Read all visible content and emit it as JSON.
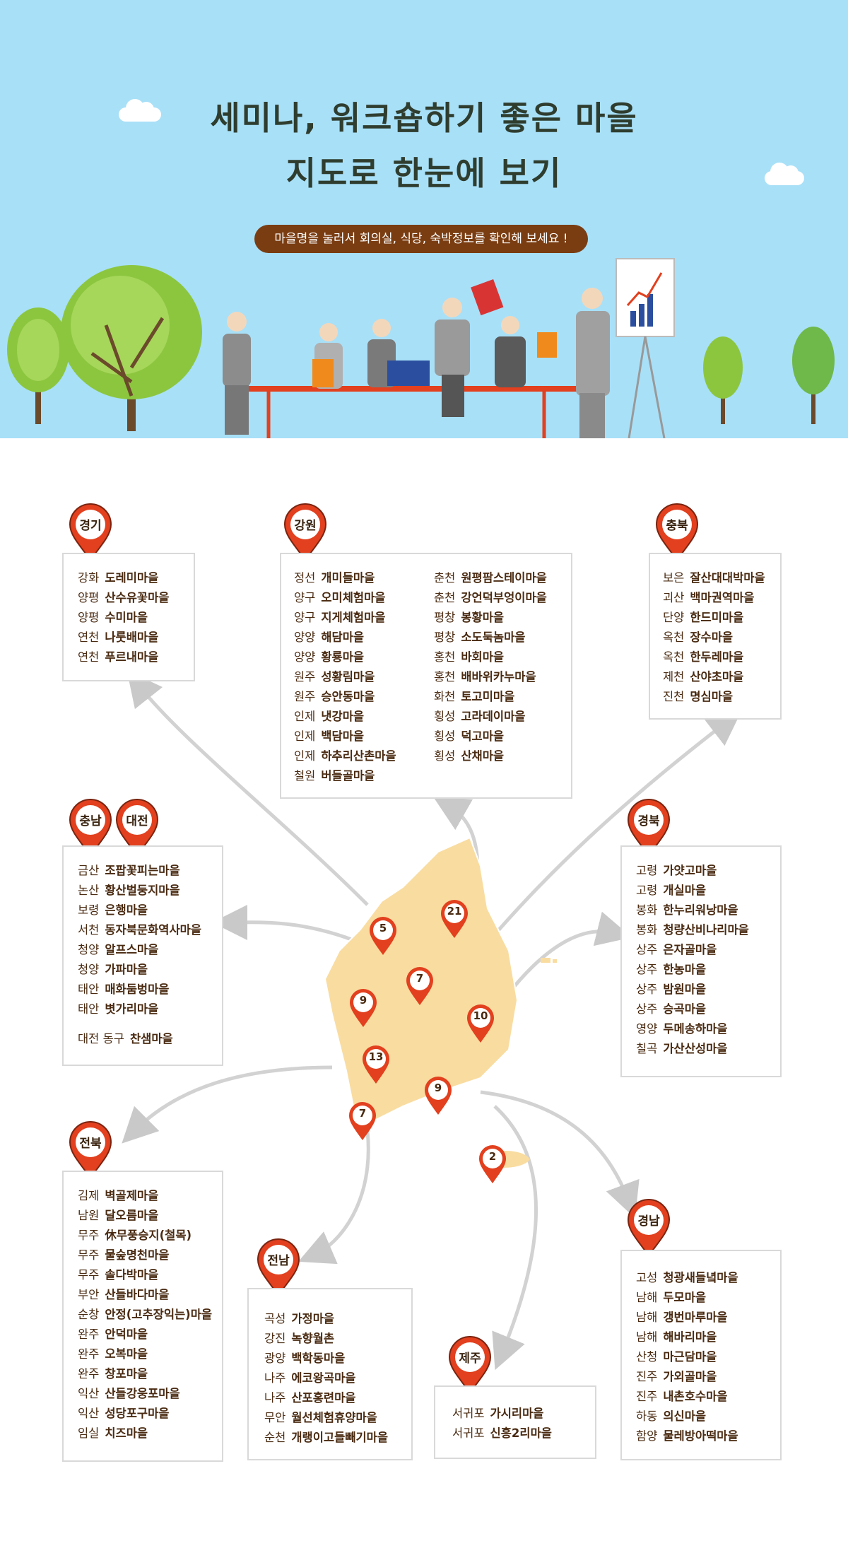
{
  "hero": {
    "title_line1": "세미나, 워크숍하기 좋은 마을",
    "title_line2": "지도로 한눈에 보기",
    "notice": "마을명을 눌러서 회의실, 식당, 숙박정보를 확인해 보세요 !"
  },
  "colors": {
    "sky": "#a8e0f8",
    "pin": "#e2401e",
    "notice_bg": "#7a3d12",
    "map_land": "#f9dca0",
    "box_border": "#d9d9d9",
    "text": "#4a2b12"
  },
  "map_pins": [
    {
      "num": "5"
    },
    {
      "num": "21"
    },
    {
      "num": "7"
    },
    {
      "num": "9"
    },
    {
      "num": "10"
    },
    {
      "num": "13"
    },
    {
      "num": "9"
    },
    {
      "num": "7"
    },
    {
      "num": "2"
    }
  ],
  "regions": {
    "gyeonggi": {
      "label": "경기",
      "items": [
        {
          "district": "강화",
          "village": "도레미마을"
        },
        {
          "district": "양평",
          "village": "산수유꽃마을"
        },
        {
          "district": "양평",
          "village": "수미마을"
        },
        {
          "district": "연천",
          "village": "나룻배마을"
        },
        {
          "district": "연천",
          "village": "푸르내마을"
        }
      ]
    },
    "gangwon": {
      "label": "강원",
      "col1": [
        {
          "district": "정선",
          "village": "개미들마을"
        },
        {
          "district": "양구",
          "village": "오미체험마을"
        },
        {
          "district": "양구",
          "village": "지게체험마을"
        },
        {
          "district": "양양",
          "village": "해담마을"
        },
        {
          "district": "양양",
          "village": "황룡마을"
        },
        {
          "district": "원주",
          "village": "성황림마을"
        },
        {
          "district": "원주",
          "village": "승안동마을"
        },
        {
          "district": "인제",
          "village": "냇강마을"
        },
        {
          "district": "인제",
          "village": "백담마을"
        },
        {
          "district": "인제",
          "village": "하추리산촌마을"
        },
        {
          "district": "철원",
          "village": "버들골마을"
        }
      ],
      "col2": [
        {
          "district": "춘천",
          "village": "원평팜스테이마을"
        },
        {
          "district": "춘천",
          "village": "강언덕부엉이마을"
        },
        {
          "district": "평창",
          "village": "봉황마을"
        },
        {
          "district": "평창",
          "village": "소도둑놈마을"
        },
        {
          "district": "홍천",
          "village": "바회마을"
        },
        {
          "district": "홍천",
          "village": "배바위카누마을"
        },
        {
          "district": "화천",
          "village": "토고미마을"
        },
        {
          "district": "횡성",
          "village": "고라데이마을"
        },
        {
          "district": "횡성",
          "village": "덕고마을"
        },
        {
          "district": "횡성",
          "village": "산채마을"
        }
      ]
    },
    "chungbuk": {
      "label": "충북",
      "items": [
        {
          "district": "보은",
          "village": "잘산대대박마을"
        },
        {
          "district": "괴산",
          "village": "백마권역마을"
        },
        {
          "district": "단양",
          "village": "한드미마을"
        },
        {
          "district": "옥천",
          "village": "장수마을"
        },
        {
          "district": "옥천",
          "village": "한두레마을"
        },
        {
          "district": "제천",
          "village": "산야초마을"
        },
        {
          "district": "진천",
          "village": "명심마을"
        }
      ]
    },
    "chungnam": {
      "label": "충남",
      "label2": "대전",
      "items": [
        {
          "district": "금산",
          "village": "조팝꽃피는마을"
        },
        {
          "district": "논산",
          "village": "황산벌둥지마을"
        },
        {
          "district": "보령",
          "village": "은행마을"
        },
        {
          "district": "서천",
          "village": "동자북문화역사마을"
        },
        {
          "district": "청양",
          "village": "알프스마을"
        },
        {
          "district": "청양",
          "village": "가파마을"
        },
        {
          "district": "태안",
          "village": "매화둠벙마을"
        },
        {
          "district": "태안",
          "village": "볏가리마을"
        }
      ],
      "extra": {
        "district": "대전 동구",
        "village": "찬샘마을"
      }
    },
    "gyeongbuk": {
      "label": "경북",
      "items": [
        {
          "district": "고령",
          "village": "가얏고마을"
        },
        {
          "district": "고령",
          "village": "개실마을"
        },
        {
          "district": "봉화",
          "village": "한누리워낭마을"
        },
        {
          "district": "봉화",
          "village": "청량산비나리마을"
        },
        {
          "district": "상주",
          "village": "은자골마을"
        },
        {
          "district": "상주",
          "village": "한농마을"
        },
        {
          "district": "상주",
          "village": "밤원마을"
        },
        {
          "district": "상주",
          "village": "승곡마을"
        },
        {
          "district": "영양",
          "village": "두메송하마을"
        },
        {
          "district": "칠곡",
          "village": "가산산성마을"
        }
      ]
    },
    "jeonbuk": {
      "label": "전북",
      "items": [
        {
          "district": "김제",
          "village": "벽골제마을"
        },
        {
          "district": "남원",
          "village": "달오름마을"
        },
        {
          "district": "무주",
          "village": "休무풍승지(철목)"
        },
        {
          "district": "무주",
          "village": "물숲명천마을"
        },
        {
          "district": "무주",
          "village": "솔다박마을"
        },
        {
          "district": "부안",
          "village": "산들바다마을"
        },
        {
          "district": "순창",
          "village": "안정(고추장익는)마을"
        },
        {
          "district": "완주",
          "village": "안덕마을"
        },
        {
          "district": "완주",
          "village": "오복마을"
        },
        {
          "district": "완주",
          "village": "창포마을"
        },
        {
          "district": "익산",
          "village": "산들강웅포마을"
        },
        {
          "district": "익산",
          "village": "성당포구마을"
        },
        {
          "district": "임실",
          "village": "치즈마을"
        }
      ]
    },
    "jeonnam": {
      "label": "전남",
      "items": [
        {
          "district": "곡성",
          "village": "가정마을"
        },
        {
          "district": "강진",
          "village": "녹향월촌"
        },
        {
          "district": "광양",
          "village": "백학동마을"
        },
        {
          "district": "나주",
          "village": "에코왕곡마을"
        },
        {
          "district": "나주",
          "village": "산포홍련마을"
        },
        {
          "district": "무안",
          "village": "월선체험휴양마을"
        },
        {
          "district": "순천",
          "village": "개랭이고들빼기마을"
        }
      ]
    },
    "jeju": {
      "label": "제주",
      "items": [
        {
          "district": "서귀포",
          "village": "가시리마을"
        },
        {
          "district": "서귀포",
          "village": "신흥2리마을"
        }
      ]
    },
    "gyeongnam": {
      "label": "경남",
      "items": [
        {
          "district": "고성",
          "village": "청광새들녘마을"
        },
        {
          "district": "남해",
          "village": "두모마을"
        },
        {
          "district": "남해",
          "village": "갱번마루마을"
        },
        {
          "district": "남해",
          "village": "해바리마을"
        },
        {
          "district": "산청",
          "village": "마근담마을"
        },
        {
          "district": "진주",
          "village": "가외골마을"
        },
        {
          "district": "진주",
          "village": "내촌호수마을"
        },
        {
          "district": "하동",
          "village": "의신마을"
        },
        {
          "district": "함양",
          "village": "물레방아떡마을"
        }
      ]
    }
  }
}
